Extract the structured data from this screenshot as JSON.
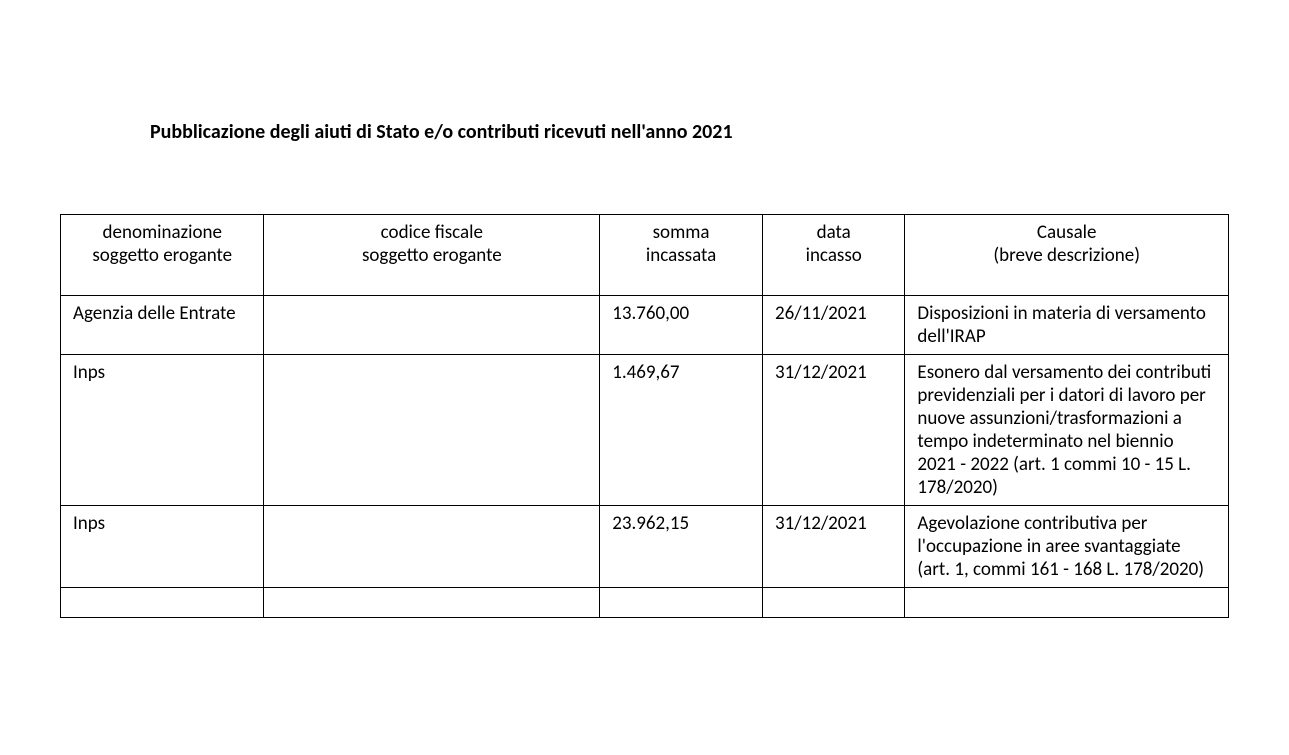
{
  "document": {
    "title": "Pubblicazione degli aiuti di Stato e/o contributi ricevuti nell'anno 2021"
  },
  "table": {
    "headers": {
      "denominazione": {
        "line1": "denominazione",
        "line2": "soggetto erogante"
      },
      "codice": {
        "line1": "codice fiscale",
        "line2": "soggetto erogante"
      },
      "somma": {
        "line1": "somma",
        "line2": "incassata"
      },
      "data": {
        "line1": "data",
        "line2": "incasso"
      },
      "causale": {
        "line1": "Causale",
        "line2": "(breve descrizione)"
      }
    },
    "rows": [
      {
        "denominazione": "Agenzia delle Entrate",
        "codice": "",
        "somma": "13.760,00",
        "data": "26/11/2021",
        "causale": "Disposizioni in materia di versamento dell'IRAP"
      },
      {
        "denominazione": "Inps",
        "codice": "",
        "somma": "1.469,67",
        "data": "31/12/2021",
        "causale": "Esonero dal versamento dei contributi previdenziali per i datori di lavoro per nuove assunzioni/trasformazioni a tempo indeterminato nel biennio 2021 - 2022 (art. 1 commi 10 - 15 L. 178/2020)"
      },
      {
        "denominazione": "Inps",
        "codice": "",
        "somma": "23.962,15",
        "data": "31/12/2021",
        "causale": "Agevolazione contributiva per l'occupazione in aree svantaggiate (art. 1, commi 161 - 168 L. 178/2020)"
      }
    ]
  },
  "styling": {
    "background_color": "#ffffff",
    "text_color": "#000000",
    "border_color": "#000000",
    "font_family": "Calibri, Arial, sans-serif",
    "title_fontsize": 20,
    "body_fontsize": 19,
    "column_widths": {
      "denominazione": 200,
      "codice": 330,
      "somma": 160,
      "data": 140,
      "causale": 318
    }
  }
}
